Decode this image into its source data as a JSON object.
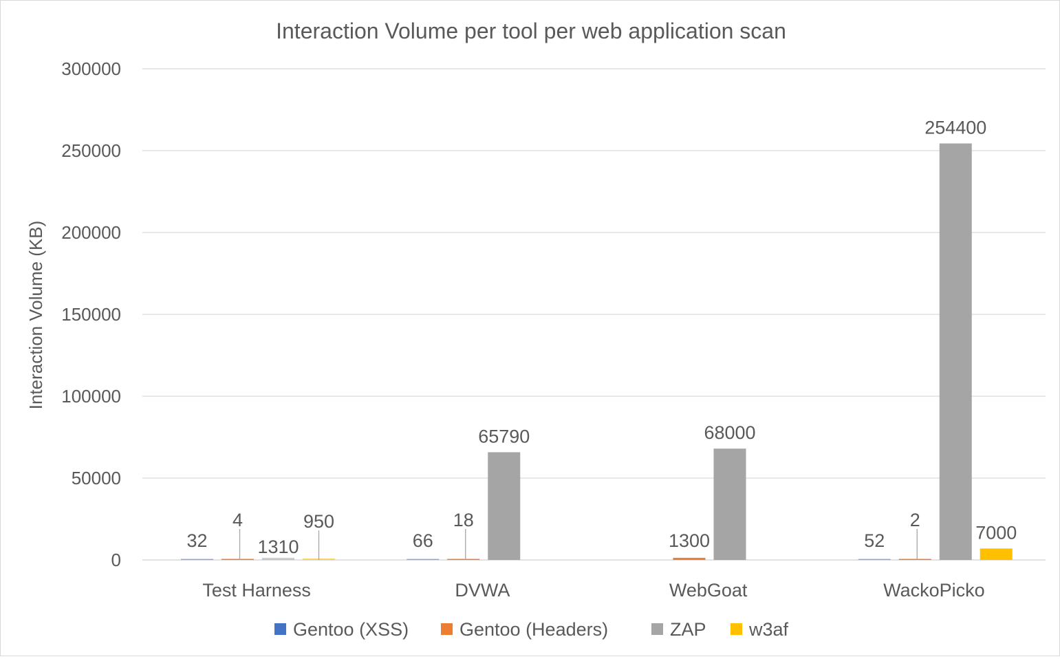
{
  "chart_data": {
    "type": "bar",
    "title": "Interaction Volume per tool per web application scan",
    "xlabel": "",
    "ylabel": "Interaction Volume (KB)",
    "ylim": [
      0,
      300000
    ],
    "yticks": [
      0,
      50000,
      100000,
      150000,
      200000,
      250000,
      300000
    ],
    "grid": true,
    "legend_position": "bottom",
    "categories": [
      "Test Harness",
      "DVWA",
      "WebGoat",
      "WackoPicko"
    ],
    "series": [
      {
        "name": "Gentoo (XSS)",
        "color": "#4472C4",
        "values": [
          32,
          66,
          null,
          52
        ],
        "labels": [
          "32",
          "66",
          "",
          "52"
        ]
      },
      {
        "name": "Gentoo (Headers)",
        "color": "#ED7D31",
        "values": [
          4,
          18,
          1300,
          2
        ],
        "labels": [
          "4",
          "18",
          "1300",
          "2"
        ]
      },
      {
        "name": "ZAP",
        "color": "#A5A5A5",
        "values": [
          1310,
          65790,
          68000,
          254400
        ],
        "labels": [
          "1310",
          "65790",
          "68000",
          "254400"
        ]
      },
      {
        "name": "w3af",
        "color": "#FFC000",
        "values": [
          950,
          null,
          null,
          7000
        ],
        "labels": [
          "950",
          "",
          "",
          "7000"
        ]
      }
    ]
  }
}
